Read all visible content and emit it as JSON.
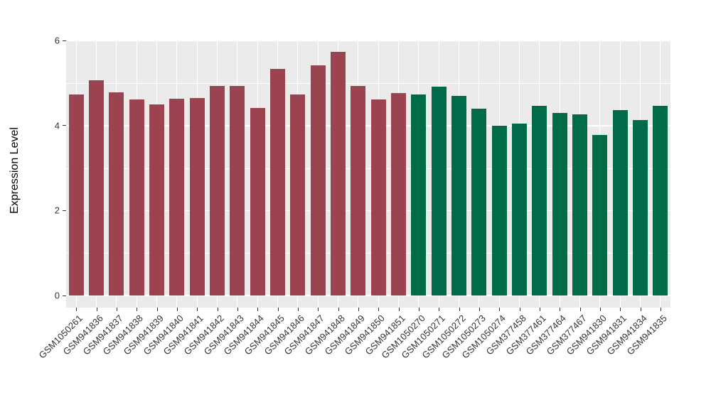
{
  "chart_data": {
    "type": "bar",
    "title": "",
    "xlabel": "",
    "ylabel": "Expression Level",
    "ylim": [
      0,
      6
    ],
    "yticks": [
      0,
      2,
      4,
      6
    ],
    "yticks_minor": [
      1,
      3,
      5
    ],
    "grid": "on",
    "legend": "none",
    "panel_background": "#EBEBEB",
    "grid_color": "#FFFFFF",
    "tick_color": "#333333",
    "group_colors": {
      "case": "#9B4350",
      "control": "#016A48"
    },
    "samples": [
      {
        "id": "GSM1050261",
        "value": 4.74,
        "group": "case"
      },
      {
        "id": "GSM941836",
        "value": 5.06,
        "group": "case"
      },
      {
        "id": "GSM941837",
        "value": 4.78,
        "group": "case"
      },
      {
        "id": "GSM941838",
        "value": 4.61,
        "group": "case"
      },
      {
        "id": "GSM941839",
        "value": 4.5,
        "group": "case"
      },
      {
        "id": "GSM941840",
        "value": 4.63,
        "group": "case"
      },
      {
        "id": "GSM941841",
        "value": 4.65,
        "group": "case"
      },
      {
        "id": "GSM941842",
        "value": 4.93,
        "group": "case"
      },
      {
        "id": "GSM941843",
        "value": 4.93,
        "group": "case"
      },
      {
        "id": "GSM941844",
        "value": 4.42,
        "group": "case"
      },
      {
        "id": "GSM941845",
        "value": 5.33,
        "group": "case"
      },
      {
        "id": "GSM941846",
        "value": 4.74,
        "group": "case"
      },
      {
        "id": "GSM941847",
        "value": 5.41,
        "group": "case"
      },
      {
        "id": "GSM941848",
        "value": 5.73,
        "group": "case"
      },
      {
        "id": "GSM941849",
        "value": 4.93,
        "group": "case"
      },
      {
        "id": "GSM941850",
        "value": 4.61,
        "group": "case"
      },
      {
        "id": "GSM941851",
        "value": 4.77,
        "group": "case"
      },
      {
        "id": "GSM1050270",
        "value": 4.74,
        "group": "control"
      },
      {
        "id": "GSM1050271",
        "value": 4.92,
        "group": "control"
      },
      {
        "id": "GSM1050272",
        "value": 4.7,
        "group": "control"
      },
      {
        "id": "GSM1050273",
        "value": 4.4,
        "group": "control"
      },
      {
        "id": "GSM1050274",
        "value": 4.0,
        "group": "control"
      },
      {
        "id": "GSM377458",
        "value": 4.05,
        "group": "control"
      },
      {
        "id": "GSM377461",
        "value": 4.46,
        "group": "control"
      },
      {
        "id": "GSM377464",
        "value": 4.3,
        "group": "control"
      },
      {
        "id": "GSM377467",
        "value": 4.26,
        "group": "control"
      },
      {
        "id": "GSM941830",
        "value": 3.78,
        "group": "control"
      },
      {
        "id": "GSM941831",
        "value": 4.37,
        "group": "control"
      },
      {
        "id": "GSM941834",
        "value": 4.13,
        "group": "control"
      },
      {
        "id": "GSM941835",
        "value": 4.46,
        "group": "control"
      }
    ]
  }
}
